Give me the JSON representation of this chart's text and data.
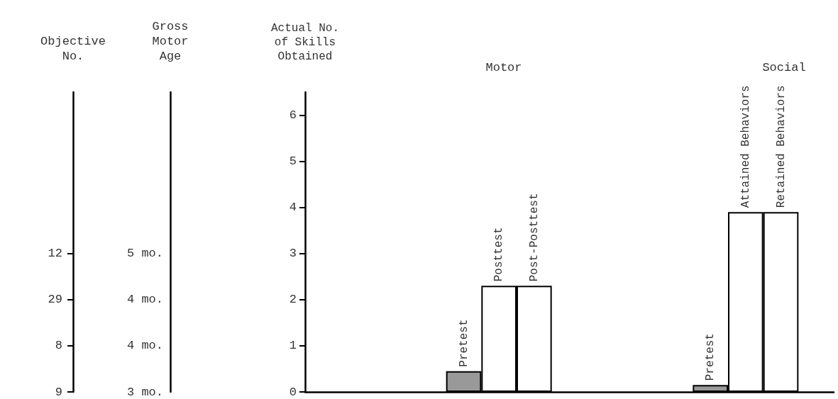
{
  "chart_data": {
    "type": "bar",
    "categories": [
      null,
      null,
      null,
      null,
      "Pretest",
      "Posttest",
      "Post-Posttest",
      null,
      null,
      null,
      null,
      "Pretest",
      "Attained Behaviors",
      "Retained Behaviors",
      null
    ],
    "values": [
      null,
      null,
      null,
      null,
      0.45,
      2.3,
      2.3,
      null,
      null,
      null,
      null,
      0.15,
      3.9,
      3.9,
      null
    ],
    "colors": [
      "#ffffff",
      "#ffffff",
      "#ffffff",
      "#ffffff",
      "#999999",
      "#ffffff",
      "#ffffff",
      "#ffffff",
      "#ffffff",
      "#ffffff",
      "#ffffff",
      "#999999",
      "#ffffff",
      "#ffffff",
      "#ffffff"
    ],
    "ylabel": "Actual No. of Skills Obtained",
    "ylim": [
      0,
      6.5
    ],
    "yticks": [
      0,
      1,
      2,
      3,
      4,
      5,
      6
    ],
    "annotations": [
      "Objective No.",
      "Gross Motor Age",
      "Motor",
      "Social",
      "9",
      "8",
      "29",
      "12",
      "3 mo.",
      "4 mo.",
      "4 mo.",
      "5 mo."
    ]
  }
}
